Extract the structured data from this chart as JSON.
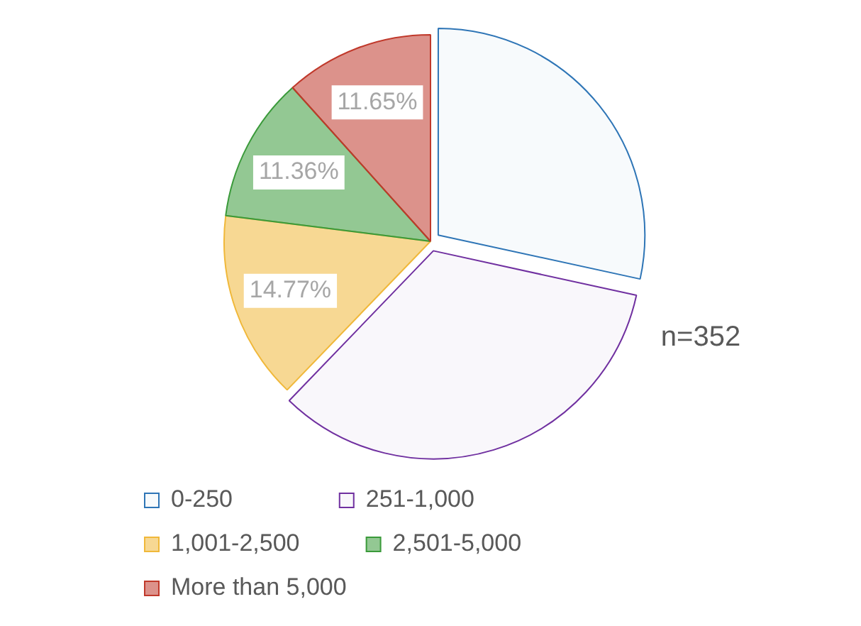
{
  "chart_data": {
    "type": "pie",
    "categories": [
      "0-250",
      "251-1,000",
      "1,001-2,500",
      "2,501-5,000",
      "More than 5,000"
    ],
    "values": [
      28.41,
      33.81,
      14.77,
      11.36,
      11.65
    ],
    "colors": [
      "#2e75b6",
      "#7030a0",
      "#f0b83a",
      "#3a9a3a",
      "#c0392b"
    ],
    "value_labels": [
      null,
      null,
      "14.77%",
      "11.36%",
      "11.65%"
    ],
    "annotations": [
      "n=352"
    ],
    "legend": "bottom"
  }
}
